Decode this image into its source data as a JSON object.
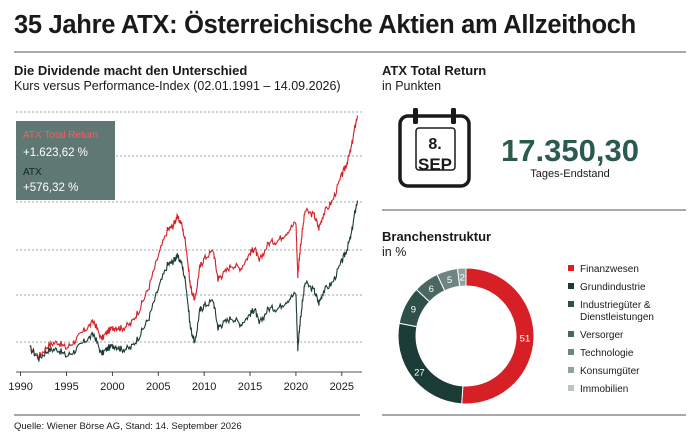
{
  "header": {
    "title": "35 Jahre ATX: Österreichische Aktien am Allzeithoch"
  },
  "left_panel": {
    "title": "Die Dividende macht den Unterschied",
    "subtitle": "Kurs versus Performance-Index (02.01.1991 – 14.09.2026)",
    "box": {
      "tr_label": "ATX Total Return",
      "tr_value": "+1.623,62 %",
      "atx_label": "ATX",
      "atx_value": "+576,32 %"
    }
  },
  "right_top": {
    "title": "ATX Total Return",
    "subtitle": "in Punkten",
    "calendar": {
      "day": "8.",
      "month": "SEP"
    },
    "value": "17.350,30",
    "value_label": "Tages-Endstand"
  },
  "right_bottom": {
    "title": "Branchenstruktur",
    "subtitle": "in %"
  },
  "source": "Quelle: Wiener Börse AG, Stand: 14. September 2026",
  "colors": {
    "red": "#d71f26",
    "dark_green": "#1b3b36",
    "accent_green": "#2a5b4e",
    "box_bg": "#5f7873"
  },
  "chart_data": [
    {
      "type": "line",
      "title": "Die Dividende macht den Unterschied",
      "x_ticks": [
        "1990",
        "1995",
        "2000",
        "2005",
        "2010",
        "2015",
        "2020",
        "2025"
      ],
      "xlim": [
        1989.5,
        2027.2
      ],
      "grid": "horizontal dashed",
      "series": [
        {
          "name": "ATX Total Return",
          "color": "#d71f26",
          "x": [
            1991.0,
            1992.0,
            1993.0,
            1994.0,
            1995.0,
            1996.0,
            1997.0,
            1998.0,
            1998.8,
            1999.5,
            2000.3,
            2001.0,
            2002.0,
            2003.0,
            2004.0,
            2005.0,
            2006.0,
            2006.6,
            2007.0,
            2007.5,
            2008.0,
            2008.5,
            2009.0,
            2009.5,
            2010.0,
            2011.0,
            2011.5,
            2012.0,
            2013.0,
            2014.0,
            2015.0,
            2015.5,
            2016.0,
            2017.0,
            2018.0,
            2019.0,
            2020.0,
            2020.2,
            2020.5,
            2021.0,
            2022.0,
            2022.5,
            2023.0,
            2024.0,
            2025.0,
            2025.5,
            2026.0,
            2026.4,
            2026.7
          ],
          "y": [
            80,
            72,
            83,
            87,
            80,
            89,
            102,
            114,
            90,
            100,
            106,
            104,
            110,
            135,
            180,
            270,
            380,
            400,
            450,
            420,
            320,
            180,
            150,
            230,
            260,
            290,
            200,
            210,
            240,
            230,
            280,
            300,
            250,
            320,
            330,
            370,
            420,
            210,
            310,
            490,
            460,
            390,
            470,
            560,
            780,
            900,
            1100,
            1450,
            1720
          ]
        },
        {
          "name": "ATX",
          "color": "#1b3b36",
          "x": [
            1991.0,
            1992.0,
            1993.0,
            1994.0,
            1995.0,
            1996.0,
            1997.0,
            1998.0,
            1998.8,
            1999.5,
            2000.3,
            2001.0,
            2002.0,
            2003.0,
            2004.0,
            2005.0,
            2006.0,
            2006.6,
            2007.0,
            2007.5,
            2008.0,
            2008.5,
            2009.0,
            2009.5,
            2010.0,
            2011.0,
            2011.5,
            2012.0,
            2013.0,
            2014.0,
            2015.0,
            2015.5,
            2016.0,
            2017.0,
            2018.0,
            2019.0,
            2020.0,
            2020.2,
            2020.5,
            2021.0,
            2022.0,
            2022.5,
            2023.0,
            2024.0,
            2025.0,
            2025.5,
            2026.0,
            2026.4,
            2026.7
          ],
          "y": [
            80,
            70,
            78,
            79,
            72,
            78,
            88,
            96,
            74,
            80,
            83,
            79,
            80,
            95,
            120,
            175,
            240,
            250,
            270,
            250,
            190,
            105,
            85,
            130,
            140,
            150,
            105,
            110,
            120,
            110,
            125,
            135,
            110,
            135,
            135,
            150,
            165,
            80,
            120,
            190,
            170,
            145,
            170,
            190,
            250,
            290,
            350,
            470,
            560
          ]
        }
      ]
    },
    {
      "type": "pie",
      "title": "Branchenstruktur",
      "unit": "in %",
      "slices": [
        {
          "label": "Finanzwesen",
          "value": 51,
          "color": "#d71f26"
        },
        {
          "label": "Grundindustrie",
          "value": 27,
          "color": "#1b3b36"
        },
        {
          "label": "Industriegüter & Dienstleistungen",
          "value": 9,
          "color": "#2f4f49"
        },
        {
          "label": "Versorger",
          "value": 6,
          "color": "#4b6762"
        },
        {
          "label": "Technologie",
          "value": 5,
          "color": "#6e8580"
        },
        {
          "label": "Konsumgüter",
          "value": 2,
          "color": "#8fa39e"
        },
        {
          "label": "Immobilien",
          "value": 0,
          "color": "#b8c5c1"
        }
      ]
    }
  ]
}
